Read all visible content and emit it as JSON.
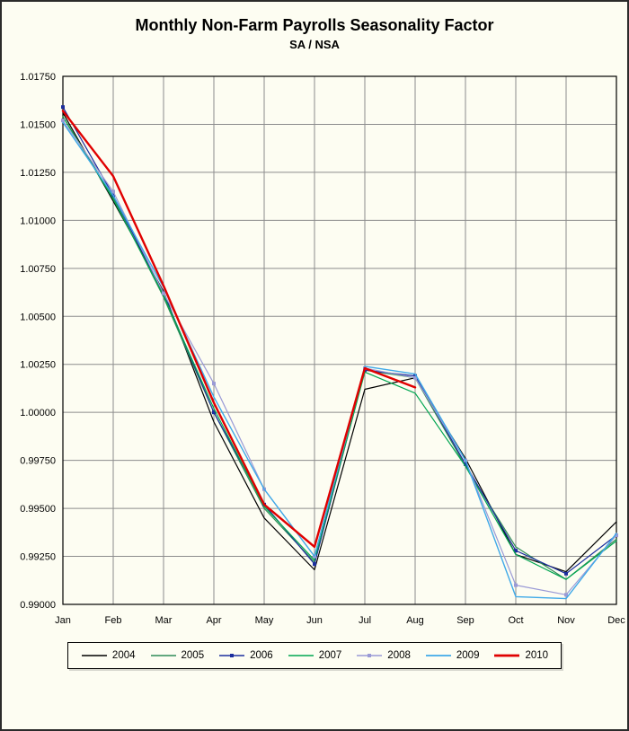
{
  "page": {
    "background": "#fdfdf2",
    "frame_color": "#2b2b2b",
    "gridline_color": "#8c8c8c",
    "axis_color": "#000000"
  },
  "chart_data": {
    "type": "line",
    "title": "Monthly Non-Farm Payrolls Seasonality Factor",
    "subtitle": "SA / NSA",
    "categories": [
      "Jan",
      "Feb",
      "Mar",
      "Apr",
      "May",
      "Jun",
      "Jul",
      "Aug",
      "Sep",
      "Oct",
      "Nov",
      "Dec"
    ],
    "xlabel": "",
    "ylabel": "",
    "ylim": [
      0.99,
      1.0175
    ],
    "ytick_step": 0.0025,
    "ytick_decimals": 5,
    "yticks": [
      "0.99000",
      "0.99250",
      "0.99500",
      "0.99750",
      "1.00000",
      "1.00250",
      "1.00500",
      "1.00750",
      "1.01000",
      "1.01250",
      "1.01500",
      "1.01750"
    ],
    "grid": true,
    "legend_position": "bottom",
    "series": [
      {
        "name": "2004",
        "color": "#000000",
        "width": 1.2,
        "marker": false,
        "values": [
          1.0156,
          1.011,
          1.0063,
          0.9995,
          0.9945,
          0.9918,
          1.0012,
          1.0018,
          0.9976,
          0.9926,
          0.9917,
          0.9943
        ]
      },
      {
        "name": "2005",
        "color": "#2e8b57",
        "width": 1.2,
        "marker": false,
        "values": [
          1.0154,
          1.0112,
          1.006,
          1.0,
          0.995,
          0.9922,
          1.0022,
          1.0018,
          0.9972,
          0.993,
          0.9913,
          0.9934
        ]
      },
      {
        "name": "2006",
        "color": "#1c2e9e",
        "width": 1.2,
        "marker": true,
        "values": [
          1.0159,
          1.0113,
          1.0062,
          1.0,
          0.9952,
          0.9921,
          1.0022,
          1.0019,
          0.9973,
          0.9928,
          0.9916,
          0.9936
        ]
      },
      {
        "name": "2007",
        "color": "#00a651",
        "width": 1.2,
        "marker": false,
        "values": [
          1.0154,
          1.0111,
          1.0061,
          1.0002,
          0.9951,
          0.9923,
          1.0021,
          1.001,
          0.9972,
          0.9926,
          0.9913,
          0.9933
        ]
      },
      {
        "name": "2008",
        "color": "#9a9ad6",
        "width": 1.2,
        "marker": true,
        "values": [
          1.0152,
          1.0115,
          1.0062,
          1.0015,
          0.996,
          0.9925,
          1.0023,
          1.0018,
          0.9975,
          0.991,
          0.9905,
          0.9936
        ]
      },
      {
        "name": "2009",
        "color": "#3fa9e8",
        "width": 1.4,
        "marker": false,
        "values": [
          1.0151,
          1.0113,
          1.0065,
          1.0008,
          0.996,
          0.9925,
          1.0024,
          1.002,
          0.9975,
          0.9904,
          0.9903,
          0.9937
        ]
      },
      {
        "name": "2010",
        "color": "#e00000",
        "width": 2.4,
        "marker": false,
        "values": [
          1.0157,
          1.0123,
          1.0066,
          1.0005,
          0.9952,
          0.993,
          1.0023,
          1.0013,
          null,
          null,
          null,
          null
        ]
      }
    ]
  }
}
